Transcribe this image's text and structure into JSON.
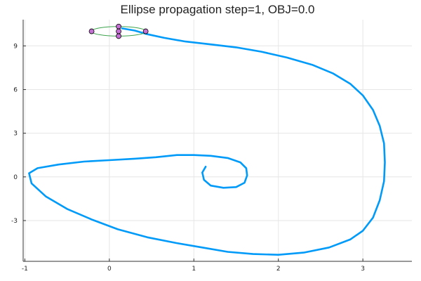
{
  "chart_data": {
    "type": "line",
    "title": "Ellipse propagation step=1, OBJ=0.0",
    "xlabel": "",
    "ylabel": "",
    "xlim": [
      -1.02,
      3.58
    ],
    "ylim": [
      -5.8,
      10.8
    ],
    "xticks": [
      -1,
      0,
      1,
      2,
      3
    ],
    "yticks": [
      -3,
      0,
      3,
      6,
      9
    ],
    "xtick_labels": [
      "-1",
      "0",
      "1",
      "2",
      "3"
    ],
    "ytick_labels": [
      "-3",
      "0",
      "3",
      "6",
      "9"
    ],
    "grid": true,
    "legend": "none",
    "series": [
      {
        "color": "#009AF9",
        "points": [
          [
            0.15,
            10.2
          ],
          [
            0.3,
            10.05
          ],
          [
            0.45,
            9.8
          ],
          [
            0.65,
            9.55
          ],
          [
            0.9,
            9.3
          ],
          [
            1.2,
            9.1
          ],
          [
            1.5,
            8.9
          ],
          [
            1.8,
            8.6
          ],
          [
            2.1,
            8.2
          ],
          [
            2.4,
            7.7
          ],
          [
            2.65,
            7.1
          ],
          [
            2.85,
            6.4
          ],
          [
            3.0,
            5.6
          ],
          [
            3.12,
            4.6
          ],
          [
            3.2,
            3.5
          ],
          [
            3.25,
            2.3
          ],
          [
            3.26,
            1.0
          ],
          [
            3.25,
            -0.3
          ],
          [
            3.2,
            -1.6
          ],
          [
            3.12,
            -2.8
          ],
          [
            3.0,
            -3.7
          ],
          [
            2.85,
            -4.3
          ],
          [
            2.6,
            -4.85
          ],
          [
            2.3,
            -5.2
          ],
          [
            2.0,
            -5.35
          ],
          [
            1.7,
            -5.3
          ],
          [
            1.4,
            -5.15
          ],
          [
            1.1,
            -4.85
          ],
          [
            0.8,
            -4.55
          ],
          [
            0.45,
            -4.15
          ],
          [
            0.1,
            -3.6
          ],
          [
            -0.2,
            -2.95
          ],
          [
            -0.5,
            -2.2
          ],
          [
            -0.75,
            -1.35
          ],
          [
            -0.92,
            -0.45
          ],
          [
            -0.95,
            0.25
          ],
          [
            -0.85,
            0.6
          ],
          [
            -0.6,
            0.85
          ],
          [
            -0.3,
            1.05
          ],
          [
            0.0,
            1.15
          ],
          [
            0.3,
            1.25
          ],
          [
            0.55,
            1.35
          ],
          [
            0.8,
            1.5
          ],
          [
            1.0,
            1.5
          ],
          [
            1.2,
            1.45
          ],
          [
            1.4,
            1.3
          ],
          [
            1.55,
            1.0
          ],
          [
            1.62,
            0.6
          ],
          [
            1.63,
            0.1
          ],
          [
            1.6,
            -0.4
          ],
          [
            1.5,
            -0.7
          ],
          [
            1.35,
            -0.75
          ],
          [
            1.2,
            -0.6
          ],
          [
            1.12,
            -0.2
          ],
          [
            1.1,
            0.3
          ],
          [
            1.14,
            0.7
          ]
        ]
      }
    ],
    "ellipse": {
      "color": "#3DA44D",
      "center": [
        0.11,
        10.0
      ],
      "rx": 0.32,
      "ry": 0.33
    },
    "markers": {
      "color": "#C271D2",
      "points": [
        [
          -0.21,
          10.0
        ],
        [
          0.43,
          10.0
        ],
        [
          0.11,
          10.33
        ],
        [
          0.11,
          9.67
        ],
        [
          0.11,
          10.0
        ]
      ]
    }
  }
}
